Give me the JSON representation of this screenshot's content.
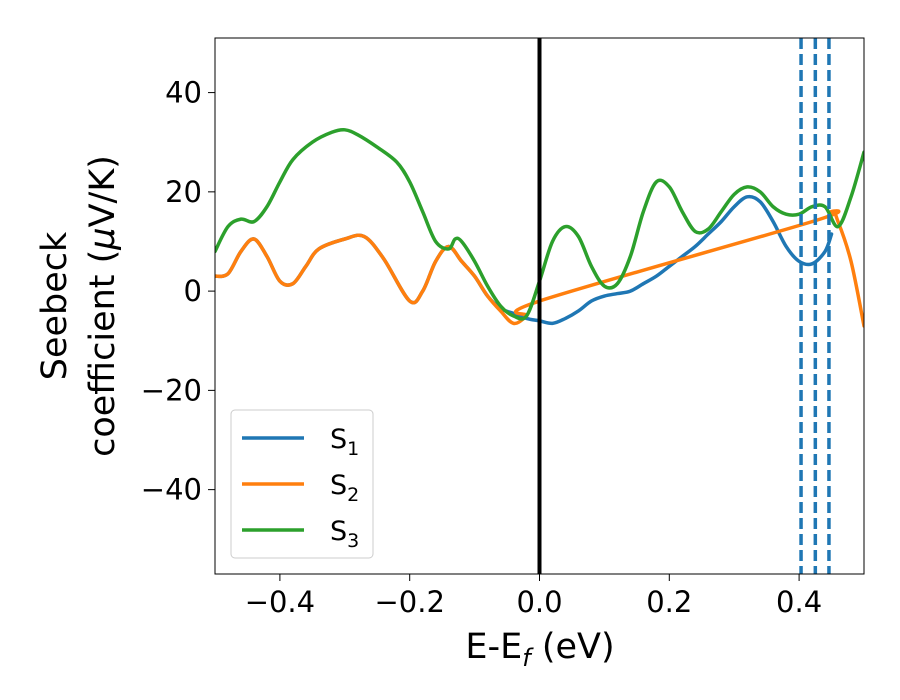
{
  "chart_data": {
    "type": "line",
    "xlabel": "E-E",
    "xlabel_sub": "f",
    "xlabel_unit": " (eV)",
    "ylabel_line1": "Seebeck",
    "ylabel_line2": "coefficient  (",
    "ylabel_mu": "μ",
    "ylabel_unit": "V/K)",
    "xlim": [
      -0.5,
      0.5
    ],
    "ylim": [
      -57,
      51
    ],
    "x_ticks": [
      -0.4,
      -0.2,
      0.0,
      0.2,
      0.4
    ],
    "x_tick_labels": [
      "−0.4",
      "−0.2",
      "0.0",
      "0.2",
      "0.4"
    ],
    "y_ticks": [
      -40,
      -20,
      0,
      20,
      40
    ],
    "y_tick_labels": [
      "−40",
      "−20",
      "0",
      "20",
      "40"
    ],
    "grid": false,
    "legend_position": "lower-left",
    "vertical_lines": [
      {
        "x": 0.0,
        "style": "solid",
        "color": "#000000"
      },
      {
        "x": 0.403,
        "style": "dashed",
        "color": "#1f77b4"
      },
      {
        "x": 0.425,
        "style": "dashed",
        "color": "#1f77b4"
      },
      {
        "x": 0.446,
        "style": "dashed",
        "color": "#1f77b4"
      }
    ],
    "series": [
      {
        "name": "S",
        "sub": "1",
        "color": "#1f77b4",
        "points": [
          [
            -0.5,
            3
          ],
          [
            -0.48,
            3.5
          ],
          [
            -0.46,
            8
          ],
          [
            -0.44,
            10.5
          ],
          [
            -0.42,
            7
          ],
          [
            -0.4,
            2
          ],
          [
            -0.38,
            1.5
          ],
          [
            -0.36,
            5
          ],
          [
            -0.34,
            8.5
          ],
          [
            -0.3,
            10.5
          ],
          [
            -0.27,
            11
          ],
          [
            -0.24,
            6.5
          ],
          [
            -0.2,
            -2
          ],
          [
            -0.18,
            0
          ],
          [
            -0.16,
            6
          ],
          [
            -0.14,
            9
          ],
          [
            -0.12,
            6
          ],
          [
            -0.1,
            3
          ],
          [
            -0.08,
            -1
          ],
          [
            -0.06,
            -3.5
          ],
          [
            -0.04,
            -4.5
          ],
          [
            -0.02,
            -5.5
          ],
          [
            0.0,
            -6
          ],
          [
            0.02,
            -6.5
          ],
          [
            0.04,
            -5.5
          ],
          [
            0.06,
            -4
          ],
          [
            0.08,
            -2
          ],
          [
            0.1,
            -1
          ],
          [
            0.12,
            -0.5
          ],
          [
            0.14,
            0
          ],
          [
            0.16,
            1.5
          ],
          [
            0.18,
            3
          ],
          [
            0.2,
            5
          ],
          [
            0.22,
            7
          ],
          [
            0.24,
            9
          ],
          [
            0.26,
            11.5
          ],
          [
            0.28,
            14
          ],
          [
            0.3,
            17
          ],
          [
            0.32,
            19
          ],
          [
            0.34,
            18
          ],
          [
            0.36,
            14
          ],
          [
            0.38,
            9
          ],
          [
            0.4,
            6
          ],
          [
            0.42,
            5.5
          ],
          [
            0.44,
            8
          ],
          [
            0.45,
            11.5
          ]
        ]
      },
      {
        "name": "S",
        "sub": "2",
        "color": "#ff7f0e",
        "points": [
          [
            -0.5,
            3
          ],
          [
            -0.48,
            3.5
          ],
          [
            -0.46,
            8
          ],
          [
            -0.44,
            10.5
          ],
          [
            -0.42,
            7
          ],
          [
            -0.4,
            2
          ],
          [
            -0.38,
            1.5
          ],
          [
            -0.36,
            5
          ],
          [
            -0.34,
            8.5
          ],
          [
            -0.3,
            10.5
          ],
          [
            -0.27,
            11
          ],
          [
            -0.24,
            6.5
          ],
          [
            -0.2,
            -2
          ],
          [
            -0.18,
            0
          ],
          [
            -0.16,
            6
          ],
          [
            -0.14,
            9
          ],
          [
            -0.12,
            6
          ],
          [
            -0.1,
            3
          ],
          [
            -0.08,
            -1
          ],
          [
            -0.06,
            -4
          ],
          [
            -0.04,
            -6.5
          ],
          [
            -0.02,
            -5
          ],
          [
            0.0,
            -2
          ],
          [
            0.42,
            14
          ],
          [
            0.45,
            16
          ],
          [
            0.46,
            14
          ],
          [
            0.48,
            6
          ],
          [
            0.5,
            -7
          ]
        ]
      },
      {
        "name": "S",
        "sub": "3",
        "color": "#2ca02c",
        "points": [
          [
            -0.5,
            8
          ],
          [
            -0.48,
            13
          ],
          [
            -0.46,
            14.5
          ],
          [
            -0.44,
            14
          ],
          [
            -0.42,
            17
          ],
          [
            -0.4,
            22
          ],
          [
            -0.38,
            26.5
          ],
          [
            -0.35,
            30
          ],
          [
            -0.32,
            32
          ],
          [
            -0.3,
            32.5
          ],
          [
            -0.28,
            31.5
          ],
          [
            -0.25,
            29
          ],
          [
            -0.22,
            26
          ],
          [
            -0.2,
            22
          ],
          [
            -0.18,
            16
          ],
          [
            -0.16,
            10
          ],
          [
            -0.14,
            8.5
          ],
          [
            -0.13,
            10.5
          ],
          [
            -0.12,
            10
          ],
          [
            -0.1,
            6
          ],
          [
            -0.08,
            1
          ],
          [
            -0.06,
            -3
          ],
          [
            -0.04,
            -5
          ],
          [
            -0.02,
            -5
          ],
          [
            0.0,
            2
          ],
          [
            0.02,
            10
          ],
          [
            0.04,
            13
          ],
          [
            0.06,
            11
          ],
          [
            0.08,
            5
          ],
          [
            0.1,
            1
          ],
          [
            0.12,
            1.5
          ],
          [
            0.14,
            7
          ],
          [
            0.16,
            16
          ],
          [
            0.18,
            22
          ],
          [
            0.2,
            21
          ],
          [
            0.22,
            16
          ],
          [
            0.24,
            12
          ],
          [
            0.26,
            12.5
          ],
          [
            0.28,
            16
          ],
          [
            0.3,
            19.5
          ],
          [
            0.32,
            21
          ],
          [
            0.34,
            20
          ],
          [
            0.36,
            17
          ],
          [
            0.38,
            15.5
          ],
          [
            0.4,
            15.5
          ],
          [
            0.42,
            17
          ],
          [
            0.44,
            17
          ],
          [
            0.46,
            13
          ],
          [
            0.48,
            19
          ],
          [
            0.5,
            28
          ]
        ]
      }
    ]
  }
}
